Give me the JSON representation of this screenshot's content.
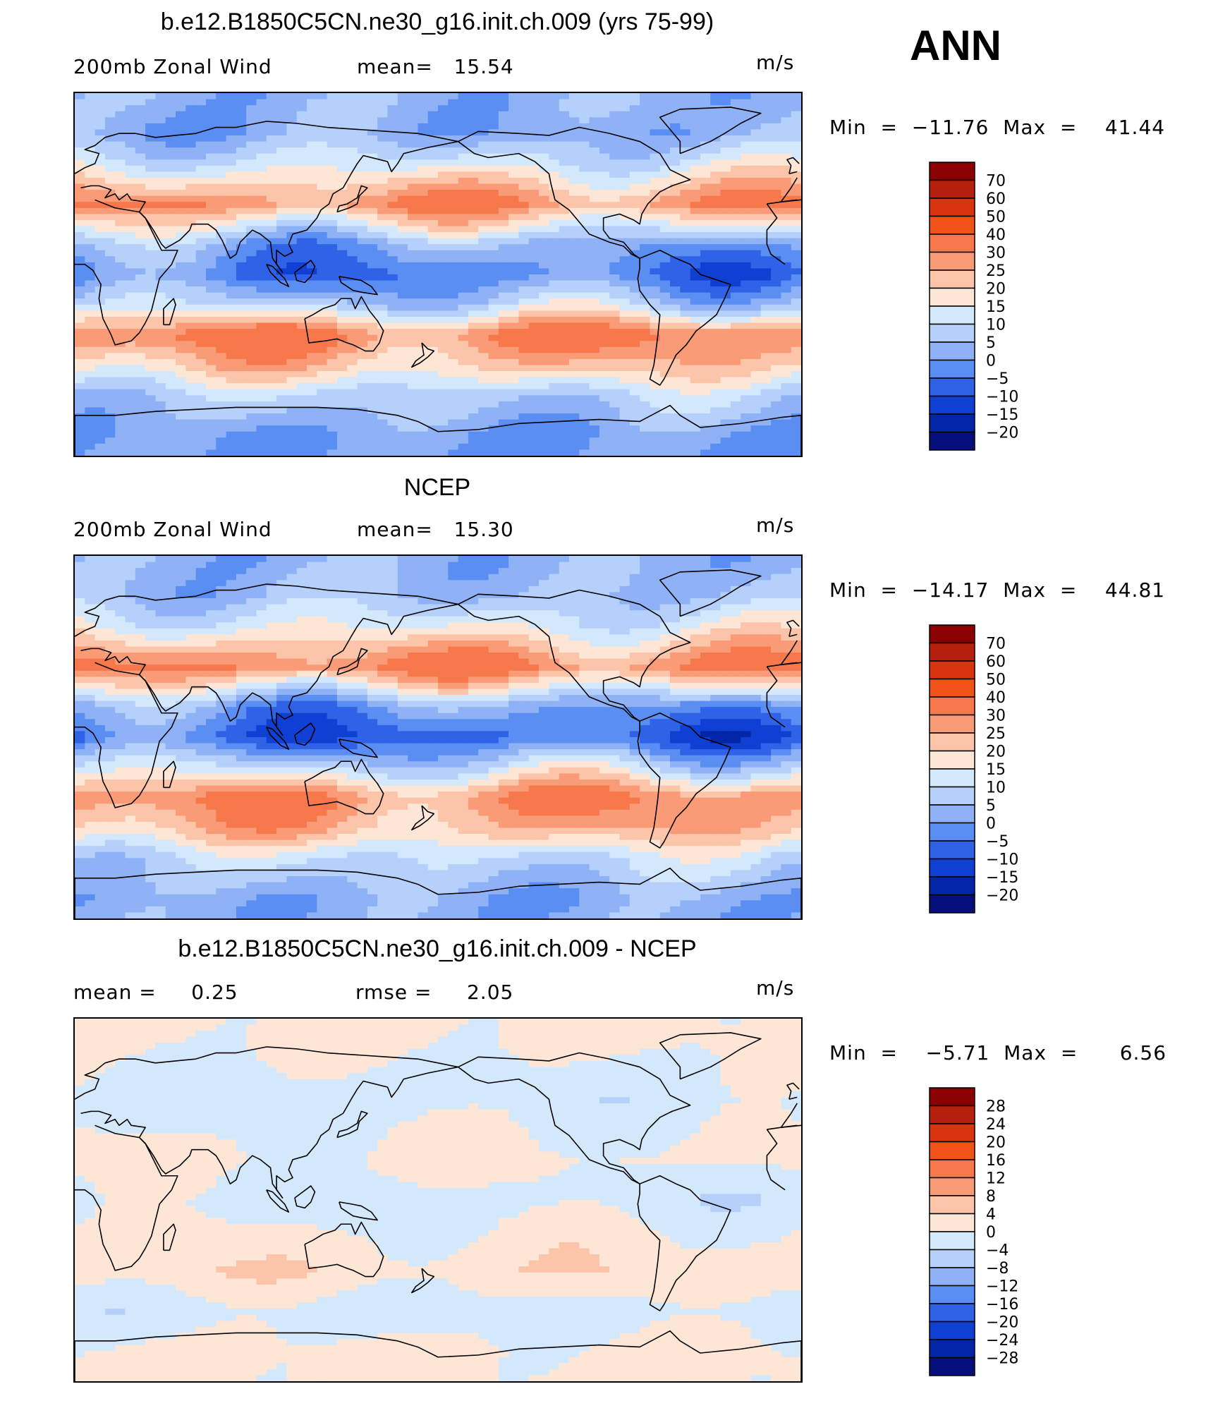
{
  "season": "ANN",
  "panels": [
    {
      "title": "b.e12.B1850C5CN.ne30_g16.init.ch.009 (yrs 75-99)",
      "left_label": "200mb Zonal Wind",
      "stat1": "mean=   15.54",
      "stat2": "",
      "units": "m/s",
      "minmax": "Min  =  −11.76  Max  =    41.44",
      "colorbar_labels": [
        "70",
        "60",
        "50",
        "40",
        "30",
        "25",
        "20",
        "15",
        "10",
        "5",
        "0",
        "−5",
        "−10",
        "−15",
        "−20"
      ],
      "colorbar_colors": [
        "#8b0000",
        "#b8200e",
        "#d9340f",
        "#f0521a",
        "#f7784a",
        "#fa9b77",
        "#fcc4a8",
        "#fde6d6",
        "#d4e8fb",
        "#b5d0fb",
        "#8fb2f7",
        "#5b8ef2",
        "#2f62e6",
        "#0f3fd3",
        "#0326a8",
        "#050f7a"
      ]
    },
    {
      "title": "NCEP",
      "left_label": "200mb Zonal Wind",
      "stat1": "mean=   15.30",
      "stat2": "",
      "units": "m/s",
      "minmax": "Min  =  −14.17  Max  =    44.81",
      "colorbar_labels": [
        "70",
        "60",
        "50",
        "40",
        "30",
        "25",
        "20",
        "15",
        "10",
        "5",
        "0",
        "−5",
        "−10",
        "−15",
        "−20"
      ],
      "colorbar_colors": [
        "#8b0000",
        "#b8200e",
        "#d9340f",
        "#f0521a",
        "#f7784a",
        "#fa9b77",
        "#fcc4a8",
        "#fde6d6",
        "#d4e8fb",
        "#b5d0fb",
        "#8fb2f7",
        "#5b8ef2",
        "#2f62e6",
        "#0f3fd3",
        "#0326a8",
        "#050f7a"
      ]
    },
    {
      "title": "b.e12.B1850C5CN.ne30_g16.init.ch.009 - NCEP",
      "left_label": "mean =     0.25",
      "stat1": "rmse =     2.05",
      "stat2": "",
      "units": "m/s",
      "minmax": "Min  =    −5.71  Max  =      6.56",
      "colorbar_labels": [
        "28",
        "24",
        "20",
        "16",
        "12",
        "8",
        "4",
        "0",
        "−4",
        "−8",
        "−12",
        "−16",
        "−20",
        "−24",
        "−28"
      ],
      "colorbar_colors": [
        "#8b0000",
        "#b8200e",
        "#d9340f",
        "#f0521a",
        "#f7784a",
        "#fa9b77",
        "#fcc4a8",
        "#fde6d6",
        "#d4e8fb",
        "#b5d0fb",
        "#8fb2f7",
        "#5b8ef2",
        "#2f62e6",
        "#0f3fd3",
        "#0326a8",
        "#050f7a"
      ]
    }
  ],
  "chart_data": [
    {
      "type": "heatmap",
      "title": "b.e12.B1850C5CN.ne30_g16.init.ch.009 (yrs 75-99)",
      "variable": "200mb Zonal Wind",
      "units": "m/s",
      "mean": 15.54,
      "min": -11.76,
      "max": 41.44,
      "contour_levels": [
        -20,
        -15,
        -10,
        -5,
        0,
        5,
        10,
        15,
        20,
        25,
        30,
        40,
        50,
        60,
        70
      ],
      "zonal_bands": [
        {
          "lat": 85,
          "value": 3
        },
        {
          "lat": 70,
          "value": 2
        },
        {
          "lat": 55,
          "value": 12
        },
        {
          "lat": 35,
          "value": 30
        },
        {
          "lat": 15,
          "value": 2
        },
        {
          "lat": 0,
          "value": -5
        },
        {
          "lat": -15,
          "value": 8
        },
        {
          "lat": -30,
          "value": 32
        },
        {
          "lat": -45,
          "value": 22
        },
        {
          "lat": -60,
          "value": 8
        },
        {
          "lat": -80,
          "value": 0
        }
      ]
    },
    {
      "type": "heatmap",
      "title": "NCEP",
      "variable": "200mb Zonal Wind",
      "units": "m/s",
      "mean": 15.3,
      "min": -14.17,
      "max": 44.81,
      "contour_levels": [
        -20,
        -15,
        -10,
        -5,
        0,
        5,
        10,
        15,
        20,
        25,
        30,
        40,
        50,
        60,
        70
      ],
      "zonal_bands": [
        {
          "lat": 85,
          "value": 3
        },
        {
          "lat": 70,
          "value": 5
        },
        {
          "lat": 55,
          "value": 14
        },
        {
          "lat": 35,
          "value": 32
        },
        {
          "lat": 15,
          "value": 0
        },
        {
          "lat": 0,
          "value": -8
        },
        {
          "lat": -15,
          "value": 10
        },
        {
          "lat": -30,
          "value": 30
        },
        {
          "lat": -45,
          "value": 24
        },
        {
          "lat": -60,
          "value": 10
        },
        {
          "lat": -80,
          "value": 2
        }
      ]
    },
    {
      "type": "heatmap",
      "title": "b.e12.B1850C5CN.ne30_g16.init.ch.009 - NCEP",
      "units": "m/s",
      "mean": 0.25,
      "rmse": 2.05,
      "min": -5.71,
      "max": 6.56,
      "contour_levels": [
        -28,
        -24,
        -20,
        -16,
        -12,
        -8,
        -4,
        0,
        4,
        8,
        12,
        16,
        20,
        24,
        28
      ],
      "zonal_bands": [
        {
          "lat": 80,
          "value": 1
        },
        {
          "lat": 50,
          "value": -2
        },
        {
          "lat": 20,
          "value": 1
        },
        {
          "lat": 0,
          "value": -2
        },
        {
          "lat": -20,
          "value": 1
        },
        {
          "lat": -35,
          "value": 3
        },
        {
          "lat": -55,
          "value": -2
        },
        {
          "lat": -75,
          "value": 1
        }
      ]
    }
  ]
}
